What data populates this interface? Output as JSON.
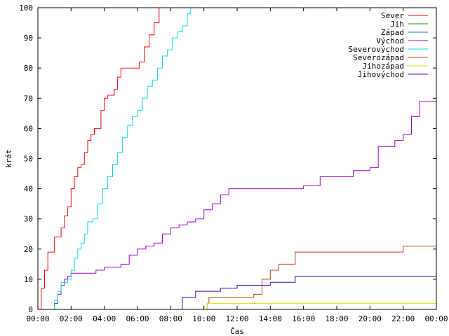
{
  "chart_data": {
    "type": "line",
    "title": "",
    "xlabel": "Čas",
    "ylabel": "krát",
    "xlim": [
      0,
      24
    ],
    "ylim": [
      0,
      100
    ],
    "grid": false,
    "legend_position": "top-right",
    "x_tick_labels": [
      "00:00",
      "02:00",
      "04:00",
      "06:00",
      "08:00",
      "10:00",
      "12:00",
      "14:00",
      "16:00",
      "18:00",
      "20:00",
      "22:00",
      "00:00"
    ],
    "y_tick_labels": [
      "0",
      "10",
      "20",
      "30",
      "40",
      "50",
      "60",
      "70",
      "80",
      "90",
      "100"
    ],
    "series": [
      {
        "name": "Sever",
        "color": "#ff0000",
        "points": [
          [
            0.0,
            0
          ],
          [
            0.2,
            7
          ],
          [
            0.4,
            13
          ],
          [
            0.6,
            19
          ],
          [
            0.8,
            19
          ],
          [
            1.0,
            24
          ],
          [
            1.2,
            24
          ],
          [
            1.4,
            27
          ],
          [
            1.6,
            31
          ],
          [
            1.8,
            34
          ],
          [
            2.0,
            40
          ],
          [
            2.2,
            44
          ],
          [
            2.4,
            47
          ],
          [
            2.6,
            48
          ],
          [
            2.8,
            52
          ],
          [
            3.0,
            56
          ],
          [
            3.2,
            58
          ],
          [
            3.4,
            60
          ],
          [
            3.6,
            60
          ],
          [
            3.8,
            66
          ],
          [
            4.0,
            70
          ],
          [
            4.2,
            71
          ],
          [
            4.4,
            71
          ],
          [
            4.6,
            73
          ],
          [
            4.8,
            77
          ],
          [
            5.0,
            80
          ],
          [
            5.4,
            80
          ],
          [
            5.8,
            80
          ],
          [
            6.1,
            82
          ],
          [
            6.4,
            87
          ],
          [
            6.7,
            91
          ],
          [
            7.0,
            95
          ],
          [
            7.3,
            100
          ],
          [
            7.4,
            100
          ]
        ]
      },
      {
        "name": "Jih",
        "color": "#00a000",
        "points": []
      },
      {
        "name": "Západ",
        "color": "#0080c0",
        "points": []
      },
      {
        "name": "Východ",
        "color": "#a000d0",
        "points": [
          [
            0.9,
            0
          ],
          [
            1.0,
            2
          ],
          [
            1.2,
            5
          ],
          [
            1.4,
            8
          ],
          [
            1.6,
            10
          ],
          [
            1.8,
            11
          ],
          [
            2.0,
            12
          ],
          [
            2.5,
            12
          ],
          [
            3.0,
            12
          ],
          [
            3.5,
            13
          ],
          [
            4.0,
            14
          ],
          [
            4.5,
            14
          ],
          [
            5.0,
            15
          ],
          [
            5.5,
            18
          ],
          [
            6.0,
            20
          ],
          [
            6.5,
            21
          ],
          [
            7.0,
            22
          ],
          [
            7.5,
            25
          ],
          [
            8.0,
            27
          ],
          [
            8.5,
            28
          ],
          [
            9.0,
            29
          ],
          [
            9.5,
            30
          ],
          [
            10.0,
            33
          ],
          [
            10.5,
            35
          ],
          [
            11.0,
            38
          ],
          [
            11.5,
            40
          ],
          [
            14.0,
            40
          ],
          [
            16.0,
            41
          ],
          [
            17.0,
            44
          ],
          [
            18.0,
            44
          ],
          [
            19.0,
            46
          ],
          [
            20.0,
            47
          ],
          [
            20.5,
            54
          ],
          [
            21.0,
            54
          ],
          [
            21.5,
            56
          ],
          [
            22.0,
            58
          ],
          [
            22.5,
            64
          ],
          [
            23.0,
            69
          ],
          [
            24.0,
            69
          ]
        ]
      },
      {
        "name": "Severovýchod",
        "color": "#00e0e0",
        "points": [
          [
            0.9,
            0
          ],
          [
            1.0,
            3
          ],
          [
            1.2,
            6
          ],
          [
            1.4,
            9
          ],
          [
            1.6,
            9
          ],
          [
            1.8,
            10
          ],
          [
            2.0,
            13
          ],
          [
            2.2,
            17
          ],
          [
            2.4,
            20
          ],
          [
            2.6,
            22
          ],
          [
            2.8,
            25
          ],
          [
            3.0,
            29
          ],
          [
            3.3,
            30
          ],
          [
            3.6,
            35
          ],
          [
            3.9,
            40
          ],
          [
            4.2,
            44
          ],
          [
            4.5,
            48
          ],
          [
            4.8,
            52
          ],
          [
            5.1,
            57
          ],
          [
            5.4,
            61
          ],
          [
            5.7,
            64
          ],
          [
            6.0,
            66
          ],
          [
            6.3,
            70
          ],
          [
            6.6,
            74
          ],
          [
            6.9,
            76
          ],
          [
            7.2,
            80
          ],
          [
            7.5,
            84
          ],
          [
            7.8,
            86
          ],
          [
            8.1,
            90
          ],
          [
            8.4,
            92
          ],
          [
            8.7,
            94
          ],
          [
            9.0,
            98
          ],
          [
            9.2,
            100
          ]
        ]
      },
      {
        "name": "Severozápad",
        "color": "#c04000",
        "points": [
          [
            10.1,
            0
          ],
          [
            10.2,
            2
          ],
          [
            10.3,
            4
          ],
          [
            11.0,
            4
          ],
          [
            12.0,
            4
          ],
          [
            13.0,
            5
          ],
          [
            13.5,
            10
          ],
          [
            14.0,
            13
          ],
          [
            14.5,
            15
          ],
          [
            15.0,
            15
          ],
          [
            15.5,
            19
          ],
          [
            16.0,
            19
          ],
          [
            17.0,
            19
          ],
          [
            18.0,
            19
          ],
          [
            19.0,
            19
          ],
          [
            20.0,
            19
          ],
          [
            21.0,
            19
          ],
          [
            22.0,
            21
          ],
          [
            23.0,
            21
          ],
          [
            24.0,
            21
          ]
        ]
      },
      {
        "name": "Jihozápad",
        "color": "#e0e000",
        "points": [
          [
            10.1,
            0
          ],
          [
            10.2,
            2
          ],
          [
            24.0,
            2
          ]
        ]
      },
      {
        "name": "Jihovýchod",
        "color": "#4000c0",
        "points": [
          [
            8.6,
            0
          ],
          [
            8.7,
            4
          ],
          [
            9.0,
            4
          ],
          [
            9.5,
            6
          ],
          [
            10.0,
            6
          ],
          [
            11.0,
            7
          ],
          [
            12.0,
            8
          ],
          [
            13.0,
            8
          ],
          [
            14.0,
            9
          ],
          [
            15.0,
            9
          ],
          [
            15.5,
            11
          ],
          [
            16.0,
            11
          ],
          [
            18.0,
            11
          ],
          [
            20.0,
            11
          ],
          [
            22.0,
            11
          ],
          [
            24.0,
            11
          ]
        ]
      }
    ]
  }
}
